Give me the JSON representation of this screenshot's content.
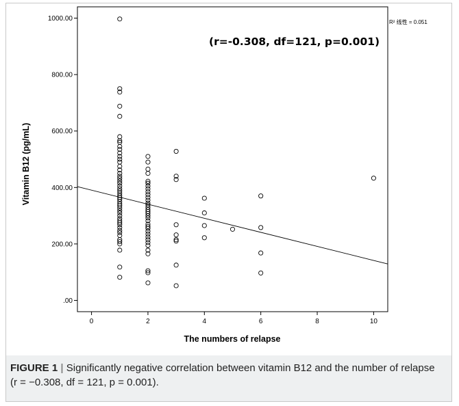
{
  "chart_data": {
    "type": "scatter",
    "xlabel": "The numbers of relapse",
    "ylabel": "Vitamin B12 (pg/mL)",
    "xlim": [
      -0.5,
      10.5
    ],
    "ylim": [
      -40,
      1040
    ],
    "xticks": [
      0,
      2,
      4,
      6,
      8,
      10
    ],
    "xtick_labels": [
      "0",
      "2",
      "4",
      "6",
      "8",
      "10"
    ],
    "yticks": [
      0,
      200,
      400,
      600,
      800,
      1000
    ],
    "ytick_labels": [
      ".00",
      "200.00",
      "400.00",
      "600.00",
      "800.00",
      "1000.00"
    ],
    "annotation": "(r=-0.308, df=121, p=0.001)",
    "fit_line_label": "R² 线性 = 0.051",
    "fit_line": {
      "x": [
        -0.5,
        10.5
      ],
      "y": [
        403,
        129
      ]
    },
    "grid": false,
    "points": [
      {
        "x": 1,
        "y": 997
      },
      {
        "x": 1,
        "y": 750
      },
      {
        "x": 1,
        "y": 738
      },
      {
        "x": 1,
        "y": 688
      },
      {
        "x": 1,
        "y": 652
      },
      {
        "x": 1,
        "y": 580
      },
      {
        "x": 1,
        "y": 566
      },
      {
        "x": 1,
        "y": 560
      },
      {
        "x": 1,
        "y": 545
      },
      {
        "x": 1,
        "y": 535
      },
      {
        "x": 1,
        "y": 522
      },
      {
        "x": 1,
        "y": 510
      },
      {
        "x": 1,
        "y": 500
      },
      {
        "x": 1,
        "y": 490
      },
      {
        "x": 1,
        "y": 475
      },
      {
        "x": 1,
        "y": 462
      },
      {
        "x": 1,
        "y": 450
      },
      {
        "x": 1,
        "y": 440
      },
      {
        "x": 1,
        "y": 432
      },
      {
        "x": 1,
        "y": 423
      },
      {
        "x": 1,
        "y": 415
      },
      {
        "x": 1,
        "y": 405
      },
      {
        "x": 1,
        "y": 396
      },
      {
        "x": 1,
        "y": 388
      },
      {
        "x": 1,
        "y": 380
      },
      {
        "x": 1,
        "y": 372
      },
      {
        "x": 1,
        "y": 365
      },
      {
        "x": 1,
        "y": 358
      },
      {
        "x": 1,
        "y": 350
      },
      {
        "x": 1,
        "y": 342
      },
      {
        "x": 1,
        "y": 335
      },
      {
        "x": 1,
        "y": 327
      },
      {
        "x": 1,
        "y": 318
      },
      {
        "x": 1,
        "y": 310
      },
      {
        "x": 1,
        "y": 300
      },
      {
        "x": 1,
        "y": 290
      },
      {
        "x": 1,
        "y": 282
      },
      {
        "x": 1,
        "y": 275
      },
      {
        "x": 1,
        "y": 268
      },
      {
        "x": 1,
        "y": 258
      },
      {
        "x": 1,
        "y": 248
      },
      {
        "x": 1,
        "y": 240
      },
      {
        "x": 1,
        "y": 230
      },
      {
        "x": 1,
        "y": 215
      },
      {
        "x": 1,
        "y": 208
      },
      {
        "x": 1,
        "y": 200
      },
      {
        "x": 1,
        "y": 178
      },
      {
        "x": 1,
        "y": 118
      },
      {
        "x": 1,
        "y": 82
      },
      {
        "x": 2,
        "y": 510
      },
      {
        "x": 2,
        "y": 490
      },
      {
        "x": 2,
        "y": 465
      },
      {
        "x": 2,
        "y": 450
      },
      {
        "x": 2,
        "y": 422
      },
      {
        "x": 2,
        "y": 415
      },
      {
        "x": 2,
        "y": 405
      },
      {
        "x": 2,
        "y": 395
      },
      {
        "x": 2,
        "y": 385
      },
      {
        "x": 2,
        "y": 375
      },
      {
        "x": 2,
        "y": 365
      },
      {
        "x": 2,
        "y": 355
      },
      {
        "x": 2,
        "y": 345
      },
      {
        "x": 2,
        "y": 338
      },
      {
        "x": 2,
        "y": 330
      },
      {
        "x": 2,
        "y": 322
      },
      {
        "x": 2,
        "y": 315
      },
      {
        "x": 2,
        "y": 308
      },
      {
        "x": 2,
        "y": 300
      },
      {
        "x": 2,
        "y": 292
      },
      {
        "x": 2,
        "y": 282
      },
      {
        "x": 2,
        "y": 270
      },
      {
        "x": 2,
        "y": 262
      },
      {
        "x": 2,
        "y": 255
      },
      {
        "x": 2,
        "y": 245
      },
      {
        "x": 2,
        "y": 235
      },
      {
        "x": 2,
        "y": 225
      },
      {
        "x": 2,
        "y": 215
      },
      {
        "x": 2,
        "y": 205
      },
      {
        "x": 2,
        "y": 195
      },
      {
        "x": 2,
        "y": 178
      },
      {
        "x": 2,
        "y": 165
      },
      {
        "x": 2,
        "y": 105
      },
      {
        "x": 2,
        "y": 98
      },
      {
        "x": 2,
        "y": 62
      },
      {
        "x": 3,
        "y": 528
      },
      {
        "x": 3,
        "y": 440
      },
      {
        "x": 3,
        "y": 428
      },
      {
        "x": 3,
        "y": 268
      },
      {
        "x": 3,
        "y": 232
      },
      {
        "x": 3,
        "y": 215
      },
      {
        "x": 3,
        "y": 210
      },
      {
        "x": 3,
        "y": 125
      },
      {
        "x": 3,
        "y": 52
      },
      {
        "x": 4,
        "y": 362
      },
      {
        "x": 4,
        "y": 310
      },
      {
        "x": 4,
        "y": 265
      },
      {
        "x": 4,
        "y": 222
      },
      {
        "x": 5,
        "y": 252
      },
      {
        "x": 6,
        "y": 370
      },
      {
        "x": 6,
        "y": 258
      },
      {
        "x": 6,
        "y": 168
      },
      {
        "x": 6,
        "y": 97
      },
      {
        "x": 10,
        "y": 433
      }
    ]
  },
  "caption": {
    "label": "FIGURE 1",
    "separator": "|",
    "text": "Significantly negative correlation between vitamin B12 and the number of relapse (r = −0.308, df = 121, p = 0.001)."
  }
}
